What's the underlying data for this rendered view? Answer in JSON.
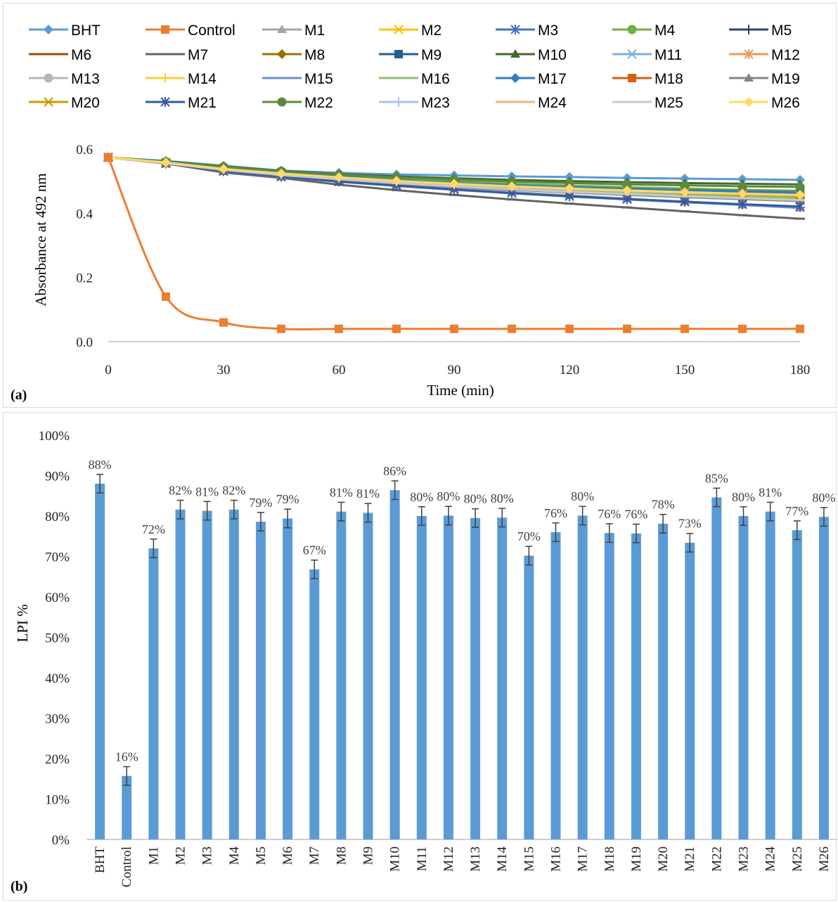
{
  "chart_data": [
    {
      "type": "line",
      "panel_label": "(a)",
      "xlabel": "Time (min)",
      "ylabel": "Absorbance at 492 nm",
      "xlim": [
        0,
        180
      ],
      "ylim": [
        0,
        0.6
      ],
      "x_ticks": [
        "0",
        "30",
        "60",
        "90",
        "120",
        "150",
        "180"
      ],
      "y_ticks": [
        "0.0",
        "0.2",
        "0.4",
        "0.6"
      ],
      "x": [
        0,
        15,
        30,
        45,
        60,
        75,
        90,
        105,
        120,
        135,
        150,
        165,
        180
      ],
      "legend_position": "top",
      "series": [
        {
          "name": "BHT",
          "color": "#5b9bd5",
          "marker": "diamond",
          "values": [
            0.574,
            0.563,
            0.548,
            0.533,
            0.526,
            0.521,
            0.518,
            0.515,
            0.513,
            0.51,
            0.508,
            0.506,
            0.504
          ]
        },
        {
          "name": "Control",
          "color": "#ed7d31",
          "marker": "square",
          "values": [
            0.574,
            0.14,
            0.06,
            0.04,
            0.04,
            0.04,
            0.04,
            0.04,
            0.04,
            0.04,
            0.04,
            0.04,
            0.04
          ]
        },
        {
          "name": "M1",
          "color": "#a5a5a5",
          "marker": "triangle",
          "values": [
            0.574,
            0.556,
            0.53,
            0.513,
            0.5,
            0.488,
            0.477,
            0.466,
            0.456,
            0.446,
            0.436,
            0.426,
            0.416
          ]
        },
        {
          "name": "M2",
          "color": "#ffc000",
          "marker": "x",
          "values": [
            0.574,
            0.558,
            0.54,
            0.527,
            0.516,
            0.505,
            0.496,
            0.489,
            0.483,
            0.478,
            0.474,
            0.471,
            0.468
          ]
        },
        {
          "name": "M3",
          "color": "#4472c4",
          "marker": "star",
          "values": [
            0.574,
            0.558,
            0.54,
            0.526,
            0.514,
            0.504,
            0.494,
            0.486,
            0.479,
            0.473,
            0.468,
            0.464,
            0.46
          ]
        },
        {
          "name": "M4",
          "color": "#70ad47",
          "marker": "circle",
          "values": [
            0.574,
            0.559,
            0.542,
            0.529,
            0.518,
            0.508,
            0.499,
            0.492,
            0.486,
            0.481,
            0.477,
            0.473,
            0.47
          ]
        },
        {
          "name": "M5",
          "color": "#264478",
          "marker": "plus",
          "values": [
            0.574,
            0.557,
            0.536,
            0.521,
            0.508,
            0.497,
            0.488,
            0.48,
            0.473,
            0.466,
            0.46,
            0.455,
            0.45
          ]
        },
        {
          "name": "M6",
          "color": "#9e480e",
          "marker": "dash",
          "values": [
            0.574,
            0.557,
            0.537,
            0.522,
            0.509,
            0.498,
            0.489,
            0.481,
            0.474,
            0.468,
            0.462,
            0.457,
            0.453
          ]
        },
        {
          "name": "M7",
          "color": "#636363",
          "marker": "dash",
          "values": [
            0.574,
            0.555,
            0.527,
            0.51,
            0.489,
            0.472,
            0.457,
            0.443,
            0.43,
            0.418,
            0.406,
            0.394,
            0.383
          ]
        },
        {
          "name": "M8",
          "color": "#997300",
          "marker": "diamond",
          "values": [
            0.574,
            0.558,
            0.54,
            0.526,
            0.514,
            0.503,
            0.494,
            0.487,
            0.481,
            0.476,
            0.472,
            0.469,
            0.466
          ]
        },
        {
          "name": "M9",
          "color": "#255e91",
          "marker": "square",
          "values": [
            0.574,
            0.558,
            0.539,
            0.525,
            0.513,
            0.502,
            0.493,
            0.486,
            0.48,
            0.475,
            0.471,
            0.468,
            0.465
          ]
        },
        {
          "name": "M10",
          "color": "#43682b",
          "marker": "triangle",
          "values": [
            0.574,
            0.561,
            0.546,
            0.532,
            0.522,
            0.515,
            0.509,
            0.504,
            0.5,
            0.497,
            0.494,
            0.492,
            0.49
          ]
        },
        {
          "name": "M11",
          "color": "#7cafdd",
          "marker": "x",
          "values": [
            0.574,
            0.557,
            0.537,
            0.522,
            0.509,
            0.498,
            0.489,
            0.481,
            0.474,
            0.468,
            0.463,
            0.459,
            0.455
          ]
        },
        {
          "name": "M12",
          "color": "#f1975a",
          "marker": "star",
          "values": [
            0.574,
            0.557,
            0.537,
            0.522,
            0.51,
            0.499,
            0.49,
            0.482,
            0.475,
            0.469,
            0.464,
            0.46,
            0.456
          ]
        },
        {
          "name": "M13",
          "color": "#b7b7b7",
          "marker": "circle",
          "values": [
            0.574,
            0.557,
            0.536,
            0.521,
            0.508,
            0.497,
            0.487,
            0.479,
            0.471,
            0.464,
            0.458,
            0.452,
            0.447
          ]
        },
        {
          "name": "M14",
          "color": "#ffcd33",
          "marker": "plus",
          "values": [
            0.574,
            0.557,
            0.537,
            0.522,
            0.509,
            0.498,
            0.489,
            0.481,
            0.474,
            0.468,
            0.462,
            0.457,
            0.453
          ]
        },
        {
          "name": "M15",
          "color": "#698ed0",
          "marker": "dash",
          "values": [
            0.574,
            0.555,
            0.53,
            0.513,
            0.498,
            0.485,
            0.473,
            0.462,
            0.452,
            0.443,
            0.434,
            0.426,
            0.418
          ]
        },
        {
          "name": "M16",
          "color": "#8cc168",
          "marker": "dash",
          "values": [
            0.574,
            0.557,
            0.535,
            0.52,
            0.507,
            0.496,
            0.486,
            0.478,
            0.47,
            0.463,
            0.457,
            0.451,
            0.446
          ]
        },
        {
          "name": "M17",
          "color": "#327dc2",
          "marker": "diamond",
          "values": [
            0.574,
            0.558,
            0.54,
            0.526,
            0.514,
            0.503,
            0.494,
            0.487,
            0.481,
            0.476,
            0.472,
            0.468,
            0.465
          ]
        },
        {
          "name": "M18",
          "color": "#d26012",
          "marker": "square",
          "values": [
            0.574,
            0.556,
            0.533,
            0.518,
            0.505,
            0.493,
            0.483,
            0.474,
            0.466,
            0.459,
            0.452,
            0.446,
            0.44
          ]
        },
        {
          "name": "M19",
          "color": "#848484",
          "marker": "triangle",
          "values": [
            0.574,
            0.556,
            0.533,
            0.517,
            0.504,
            0.492,
            0.482,
            0.473,
            0.465,
            0.457,
            0.45,
            0.444,
            0.438
          ]
        },
        {
          "name": "M20",
          "color": "#cc9a00",
          "marker": "x",
          "values": [
            0.574,
            0.557,
            0.538,
            0.523,
            0.51,
            0.499,
            0.49,
            0.482,
            0.475,
            0.469,
            0.463,
            0.458,
            0.453
          ]
        },
        {
          "name": "M21",
          "color": "#335aa1",
          "marker": "star",
          "values": [
            0.574,
            0.555,
            0.531,
            0.514,
            0.499,
            0.486,
            0.474,
            0.463,
            0.453,
            0.444,
            0.436,
            0.428,
            0.421
          ]
        },
        {
          "name": "M22",
          "color": "#5a8a3a",
          "marker": "circle",
          "values": [
            0.574,
            0.56,
            0.545,
            0.531,
            0.52,
            0.512,
            0.505,
            0.499,
            0.494,
            0.49,
            0.487,
            0.484,
            0.482
          ]
        },
        {
          "name": "M23",
          "color": "#a3c4e9",
          "marker": "plus",
          "values": [
            0.574,
            0.557,
            0.537,
            0.522,
            0.51,
            0.499,
            0.49,
            0.482,
            0.475,
            0.469,
            0.464,
            0.46,
            0.456
          ]
        },
        {
          "name": "M24",
          "color": "#f4b183",
          "marker": "dash",
          "values": [
            0.574,
            0.557,
            0.538,
            0.523,
            0.511,
            0.5,
            0.491,
            0.483,
            0.476,
            0.47,
            0.465,
            0.461,
            0.457
          ]
        },
        {
          "name": "M25",
          "color": "#c9c9c9",
          "marker": "dash",
          "values": [
            0.574,
            0.556,
            0.535,
            0.519,
            0.506,
            0.494,
            0.484,
            0.475,
            0.467,
            0.46,
            0.453,
            0.447,
            0.441
          ]
        },
        {
          "name": "M26",
          "color": "#ffd966",
          "marker": "diamond",
          "values": [
            0.574,
            0.558,
            0.538,
            0.524,
            0.512,
            0.501,
            0.492,
            0.484,
            0.477,
            0.471,
            0.466,
            0.461,
            0.457
          ]
        }
      ]
    },
    {
      "type": "bar",
      "panel_label": "(b)",
      "ylabel": "LPI %",
      "ylim": [
        0,
        100
      ],
      "y_ticks": [
        "0%",
        "10%",
        "20%",
        "30%",
        "40%",
        "50%",
        "60%",
        "70%",
        "80%",
        "90%",
        "100%"
      ],
      "bar_color": "#5b9bd5",
      "categories": [
        "BHT",
        "Control",
        "M1",
        "M2",
        "M3",
        "M4",
        "M5",
        "M6",
        "M7",
        "M8",
        "M9",
        "M10",
        "M11",
        "M12",
        "M13",
        "M14",
        "M15",
        "M16",
        "M17",
        "M18",
        "M19",
        "M20",
        "M21",
        "M22",
        "M23",
        "M24",
        "M25",
        "M26"
      ],
      "values": [
        88,
        15.7,
        72,
        81.6,
        81.3,
        81.6,
        78.6,
        79.4,
        66.8,
        81.1,
        80.8,
        86.4,
        80.0,
        80.1,
        79.5,
        79.6,
        70.2,
        76.0,
        80.1,
        75.8,
        75.7,
        78.1,
        73.4,
        84.6,
        80.0,
        81.1,
        76.5,
        79.8
      ],
      "errors": [
        2.3,
        2.3,
        2.3,
        2.3,
        2.3,
        2.3,
        2.3,
        2.3,
        2.3,
        2.3,
        2.3,
        2.3,
        2.3,
        2.3,
        2.3,
        2.3,
        2.3,
        2.3,
        2.3,
        2.3,
        2.3,
        2.3,
        2.3,
        2.3,
        2.3,
        2.3,
        2.3,
        2.3
      ],
      "data_labels": [
        "88%",
        "16%",
        "72%",
        "82%",
        "81%",
        "82%",
        "79%",
        "79%",
        "67%",
        "81%",
        "81%",
        "86%",
        "80%",
        "80%",
        "80%",
        "80%",
        "70%",
        "76%",
        "80%",
        "76%",
        "76%",
        "78%",
        "73%",
        "85%",
        "80%",
        "81%",
        "77%",
        "80%"
      ]
    }
  ]
}
